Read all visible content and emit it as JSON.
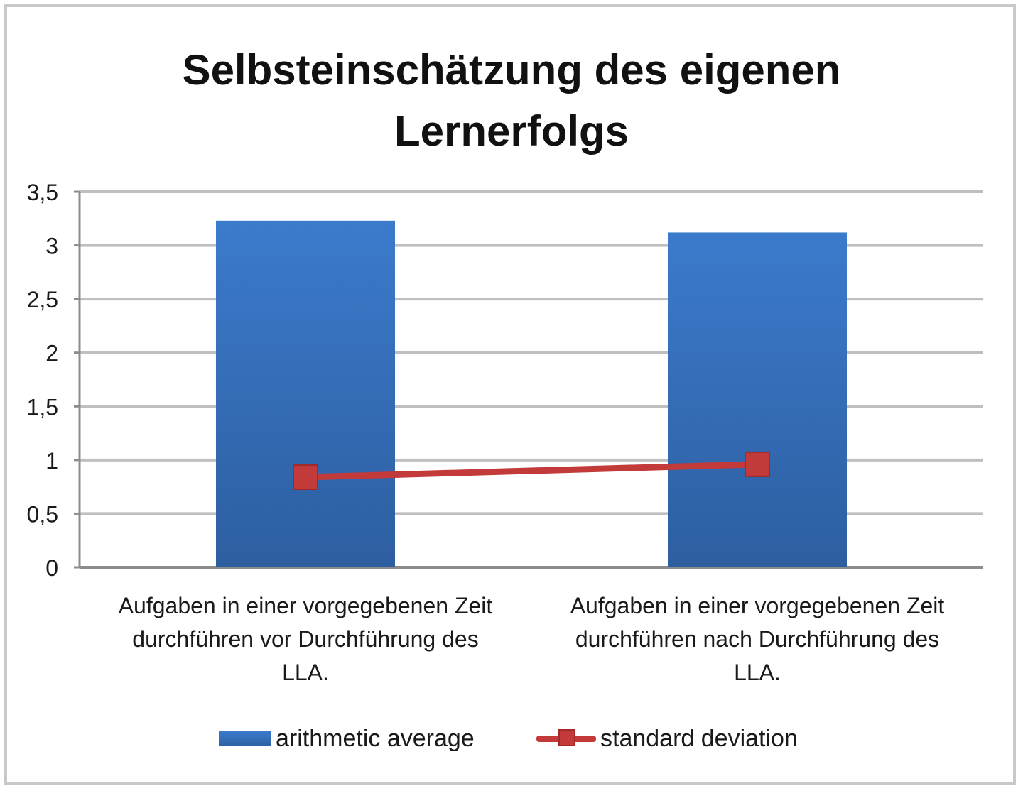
{
  "chart_data": {
    "type": "bar",
    "title": "Selbsteinschätzung des eigenen Lernerfolgs",
    "title_lines": [
      "Selbsteinschätzung des eigenen",
      "Lernerfolgs"
    ],
    "categories": [
      [
        "Aufgaben in einer vorgegebenen Zeit",
        "durchführen vor Durchführung des",
        "LLA."
      ],
      [
        "Aufgaben in einer vorgegebenen Zeit",
        "durchführen nach Durchführung des",
        "LLA."
      ]
    ],
    "series": [
      {
        "name": "arithmetic average",
        "type": "bar",
        "color": "#3a78c9",
        "values": [
          3.23,
          3.12
        ]
      },
      {
        "name": "standard deviation",
        "type": "line",
        "marker": "square",
        "color": "#c23a3a",
        "values": [
          0.84,
          0.96
        ]
      }
    ],
    "ylim": [
      0,
      3.5
    ],
    "yticks": [
      "0",
      "0,5",
      "1",
      "1,5",
      "2",
      "2,5",
      "3",
      "3,5"
    ],
    "ytick_values": [
      0,
      0.5,
      1,
      1.5,
      2,
      2.5,
      3,
      3.5
    ],
    "grid": true,
    "legend_position": "bottom"
  }
}
